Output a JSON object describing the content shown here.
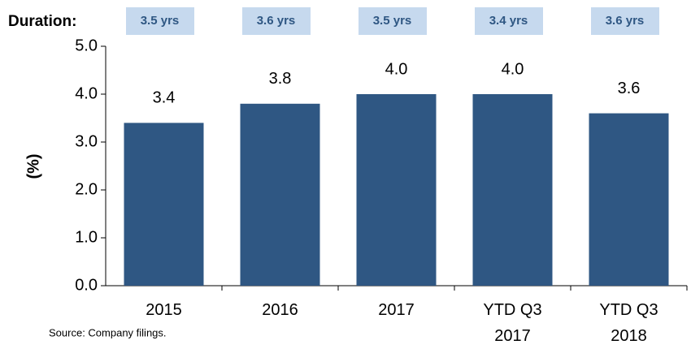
{
  "chart_data": {
    "type": "bar",
    "duration_label": "Duration:",
    "duration": [
      "3.5 yrs",
      "3.6 yrs",
      "3.5 yrs",
      "3.4 yrs",
      "3.6 yrs"
    ],
    "ylabel": "(%)",
    "categories": [
      "2015",
      "2016",
      "2017",
      "YTD Q3 2017",
      "YTD Q3 2018"
    ],
    "values": [
      3.4,
      3.8,
      4.0,
      4.0,
      3.6
    ],
    "value_labels": [
      "3.4",
      "3.8",
      "4.0",
      "4.0",
      "3.6"
    ],
    "color": "#2f5783",
    "ylim": [
      0,
      5
    ],
    "yticks": [
      {
        "value": 0,
        "label": "0.0"
      },
      {
        "value": 1,
        "label": "1.0"
      },
      {
        "value": 2,
        "label": "2.0"
      },
      {
        "value": 3,
        "label": "3.0"
      },
      {
        "value": 4,
        "label": "4.0"
      },
      {
        "value": 5,
        "label": "5.0"
      }
    ],
    "source": "Source: Company filings."
  }
}
